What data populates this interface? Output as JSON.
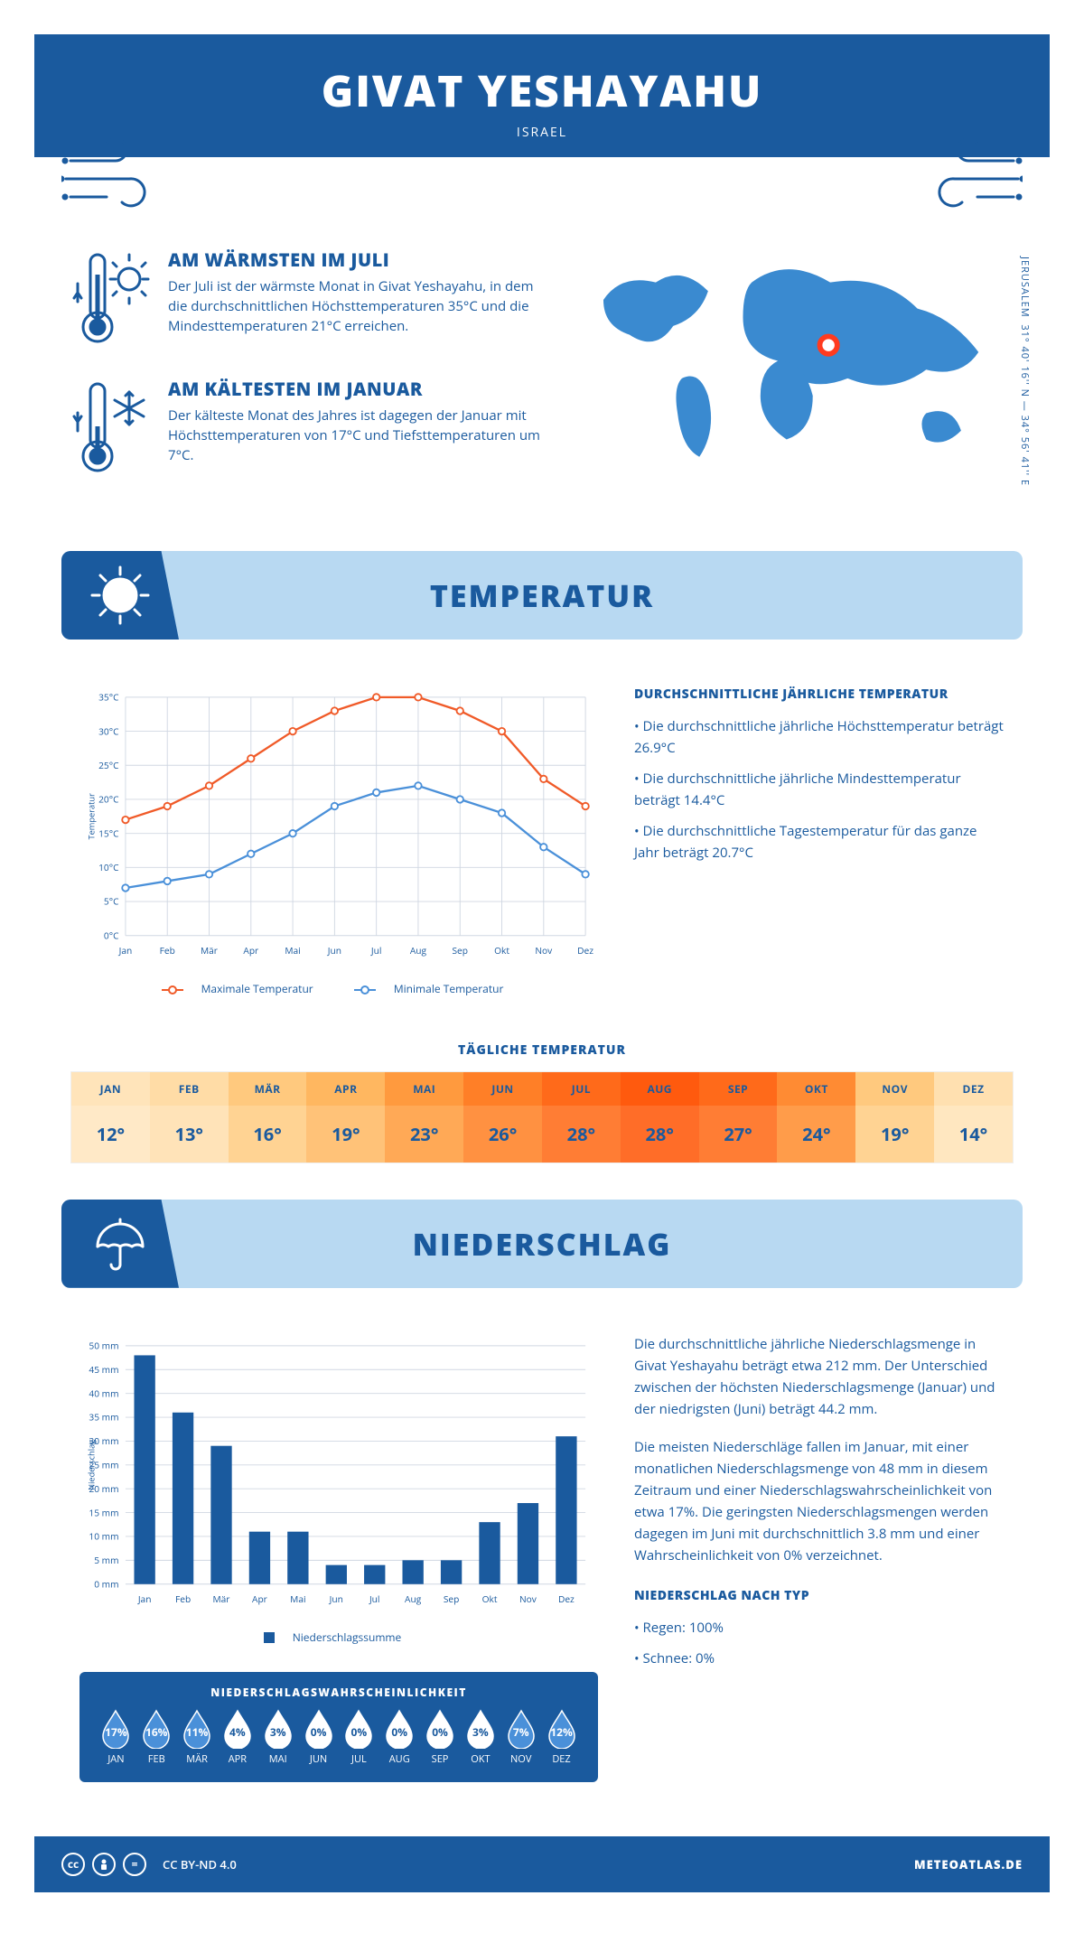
{
  "header": {
    "title": "GIVAT YESHAYAHU",
    "subtitle": "ISRAEL",
    "coords": "31° 40' 16'' N — 34° 56' 41'' E",
    "city_label": "JERUSALEM"
  },
  "facts": {
    "warmest": {
      "heading": "AM WÄRMSTEN IM JULI",
      "text": "Der Juli ist der wärmste Monat in Givat Yeshayahu, in dem die durchschnittlichen Höchsttemperaturen 35°C und die Mindesttemperaturen 21°C erreichen."
    },
    "coldest": {
      "heading": "AM KÄLTESTEN IM JANUAR",
      "text": "Der kälteste Monat des Jahres ist dagegen der Januar mit Höchsttemperaturen von 17°C und Tiefsttemperaturen um 7°C."
    }
  },
  "colors": {
    "primary": "#1a5a9e",
    "banner_bg": "#b8d9f2",
    "max_line": "#f05a28",
    "min_line": "#4a90d9",
    "grid": "#d0d7e2",
    "bar": "#1a5a9e"
  },
  "temperature": {
    "section_title": "TEMPERATUR",
    "side_heading": "DURCHSCHNITTLICHE JÄHRLICHE TEMPERATUR",
    "bullets": [
      "• Die durchschnittliche jährliche Höchsttemperatur beträgt 26.9°C",
      "• Die durchschnittliche jährliche Mindesttemperatur beträgt 14.4°C",
      "• Die durchschnittliche Tagestemperatur für das ganze Jahr beträgt 20.7°C"
    ],
    "y_label": "Temperatur",
    "months": [
      "Jan",
      "Feb",
      "Mär",
      "Apr",
      "Mai",
      "Jun",
      "Jul",
      "Aug",
      "Sep",
      "Okt",
      "Nov",
      "Dez"
    ],
    "ylim": [
      0,
      35
    ],
    "ytick_step": 5,
    "max_series": [
      17,
      19,
      22,
      26,
      30,
      33,
      35,
      35,
      33,
      30,
      23,
      19
    ],
    "min_series": [
      7,
      8,
      9,
      12,
      15,
      19,
      21,
      22,
      20,
      18,
      13,
      9
    ],
    "legend_max": "Maximale Temperatur",
    "legend_min": "Minimale Temperatur",
    "daily_title": "TÄGLICHE TEMPERATUR",
    "daily_months": [
      "JAN",
      "FEB",
      "MÄR",
      "APR",
      "MAI",
      "JUN",
      "JUL",
      "AUG",
      "SEP",
      "OKT",
      "NOV",
      "DEZ"
    ],
    "daily_values": [
      "12°",
      "13°",
      "16°",
      "19°",
      "23°",
      "26°",
      "28°",
      "28°",
      "27°",
      "24°",
      "19°",
      "14°"
    ],
    "daily_header_colors": [
      "#ffe4ba",
      "#ffdca6",
      "#ffc97e",
      "#ffb760",
      "#ff9a3e",
      "#ff7f27",
      "#ff6a1a",
      "#ff5a0e",
      "#ff6a1a",
      "#ff8b33",
      "#ffc97e",
      "#ffe0b0"
    ],
    "daily_value_colors": [
      "#ffe9c7",
      "#ffe3b8",
      "#ffd393",
      "#ffc278",
      "#ffa956",
      "#ff9141",
      "#ff7d34",
      "#ff6d28",
      "#ff7d34",
      "#ff9c4a",
      "#ffd393",
      "#ffe7c0"
    ]
  },
  "precipitation": {
    "section_title": "NIEDERSCHLAG",
    "y_label": "Niederschlag",
    "months": [
      "Jan",
      "Feb",
      "Mär",
      "Apr",
      "Mai",
      "Jun",
      "Jul",
      "Aug",
      "Sep",
      "Okt",
      "Nov",
      "Dez"
    ],
    "ylim": [
      0,
      50
    ],
    "ytick_step": 5,
    "values": [
      48,
      36,
      29,
      11,
      11,
      4,
      4,
      5,
      5,
      13,
      17,
      31
    ],
    "legend": "Niederschlagssumme",
    "text1": "Die durchschnittliche jährliche Niederschlagsmenge in Givat Yeshayahu beträgt etwa 212 mm. Der Unterschied zwischen der höchsten Niederschlagsmenge (Januar) und der niedrigsten (Juni) beträgt 44.2 mm.",
    "text2": "Die meisten Niederschläge fallen im Januar, mit einer monatlichen Niederschlagsmenge von 48 mm in diesem Zeitraum und einer Niederschlagswahrscheinlichkeit von etwa 17%. Die geringsten Niederschlagsmengen werden dagegen im Juni mit durchschnittlich 3.8 mm und einer Wahrscheinlichkeit von 0% verzeichnet.",
    "type_heading": "NIEDERSCHLAG NACH TYP",
    "type_lines": [
      "• Regen: 100%",
      "• Schnee: 0%"
    ],
    "prob_title": "NIEDERSCHLAGSWAHRSCHEINLICHKEIT",
    "prob_months": [
      "JAN",
      "FEB",
      "MÄR",
      "APR",
      "MAI",
      "JUN",
      "JUL",
      "AUG",
      "SEP",
      "OKT",
      "NOV",
      "DEZ"
    ],
    "prob_values": [
      "17%",
      "16%",
      "11%",
      "4%",
      "3%",
      "0%",
      "0%",
      "0%",
      "0%",
      "3%",
      "7%",
      "12%"
    ],
    "prob_filled": [
      true,
      true,
      true,
      false,
      false,
      false,
      false,
      false,
      false,
      false,
      true,
      true
    ]
  },
  "footer": {
    "license": "CC BY-ND 4.0",
    "site": "METEOATLAS.DE"
  }
}
